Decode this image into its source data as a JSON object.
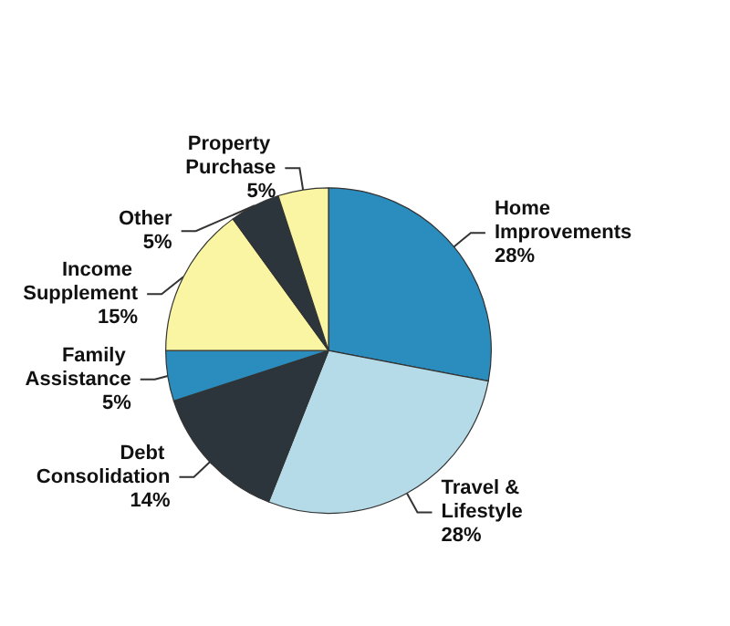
{
  "chart_data": {
    "type": "pie",
    "categories": [
      "Home Improvements",
      "Travel & Lifestyle",
      "Debt Consolidation",
      "Family Assistance",
      "Income Supplement",
      "Other",
      "Property Purchase"
    ],
    "values": [
      28,
      28,
      14,
      5,
      15,
      5,
      5
    ],
    "colors": [
      "#2b8cbe",
      "#b5dbe8",
      "#2c353b",
      "#2b8cbe",
      "#f9f5a3",
      "#2c353b",
      "#f9f5a3"
    ],
    "value_labels": [
      "28%",
      "28%",
      "14%",
      "5%",
      "15%",
      "5%",
      "5%"
    ],
    "legend": false
  }
}
